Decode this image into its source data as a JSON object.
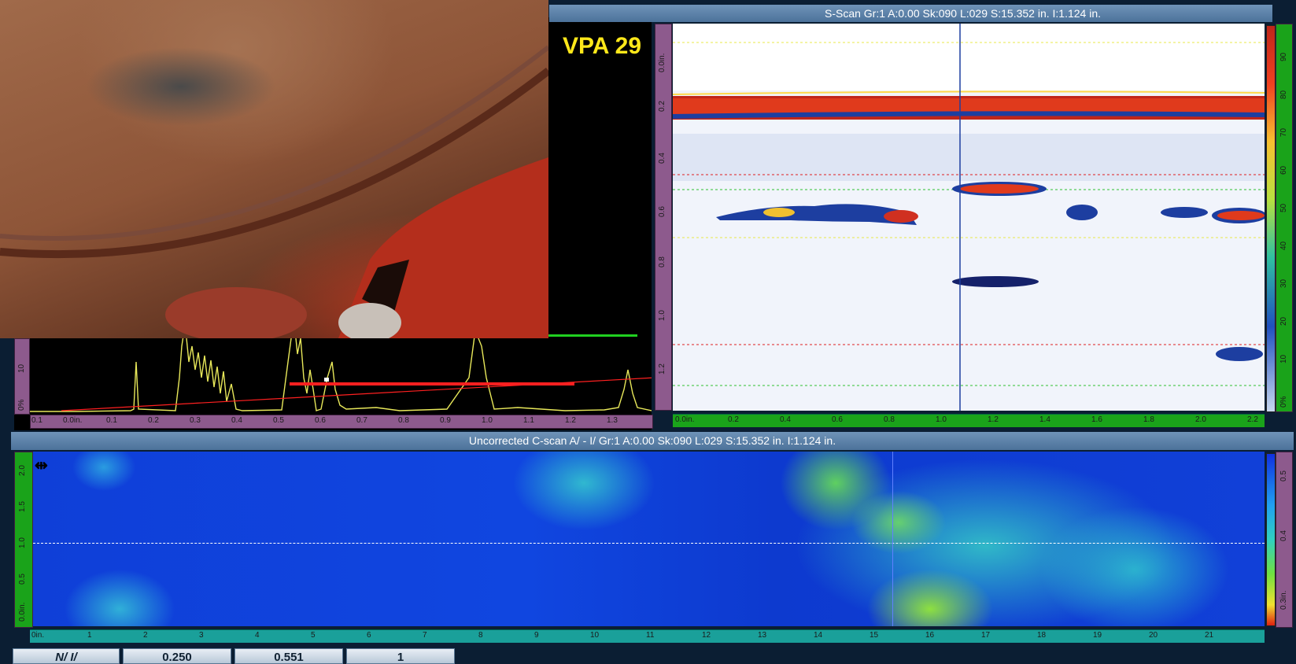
{
  "sscan": {
    "title": "S-Scan Gr:1 A:0.00 Sk:090 L:029 S:15.352 in. I:1.124 in.",
    "yticks": [
      "0.0in.",
      "0.2",
      "0.4",
      "0.6",
      "0.8",
      "1.0",
      "1.2"
    ],
    "xticks": [
      "0.0in.",
      "0.2",
      "0.4",
      "0.6",
      "0.8",
      "1.0",
      "1.2",
      "1.4",
      "1.6",
      "1.8",
      "2.0",
      "2.2"
    ],
    "palette_ticks": [
      "90",
      "80",
      "70",
      "60",
      "50",
      "40",
      "30",
      "20",
      "10",
      "0%"
    ]
  },
  "ascan": {
    "label": "VPA 29",
    "yticks": [
      "0%",
      "10"
    ],
    "xticks": [
      "0.1",
      "0.0in.",
      "0.1",
      "0.2",
      "0.3",
      "0.4",
      "0.5",
      "0.6",
      "0.7",
      "0.8",
      "0.9",
      "1.0",
      "1.1",
      "1.2",
      "1.3"
    ]
  },
  "cscan": {
    "title": "Uncorrected C-scan A/ - I/ Gr:1 A:0.00 Sk:090 L:029 S:15.352 in. I:1.124 in.",
    "yticks": [
      "0.0in.",
      "0.5",
      "1.0",
      "1.5",
      "2.0"
    ],
    "xticks": [
      "0in.",
      "1",
      "2",
      "3",
      "4",
      "5",
      "6",
      "7",
      "8",
      "9",
      "10",
      "11",
      "12",
      "13",
      "14",
      "15",
      "16",
      "17",
      "18",
      "19",
      "20",
      "21"
    ],
    "palette_ticks": [
      "0.5",
      "0.4",
      "0.3in."
    ]
  },
  "statusbar": {
    "cells": [
      "N/ I/",
      "0.250",
      "0.551",
      "1"
    ]
  },
  "icons": {
    "cursor": "horizontal-resize-cursor-icon",
    "photo": "pipe-corrosion-photo"
  },
  "colors": {
    "background": "#0b1e33",
    "titlebar": "#5a80a8",
    "ruler_purple": "#8d5a8d",
    "ruler_green": "#1aa31a",
    "ruler_teal": "#1aa09a",
    "ascan_signal": "#e8e85a",
    "gate_red": "#ff2020",
    "gate_green": "#20d020",
    "label_yellow": "#ffe81a"
  }
}
